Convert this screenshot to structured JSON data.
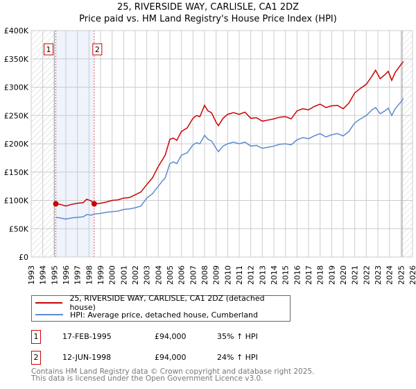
{
  "chart_data": {
    "type": "line",
    "title": "25, RIVERSIDE WAY, CARLISLE, CA1 2DZ",
    "subtitle": "Price paid vs. HM Land Registry's House Price Index (HPI)",
    "xlim": [
      1993,
      2026
    ],
    "ylim": [
      0,
      400000
    ],
    "yticks": [
      "£0",
      "£50K",
      "£100K",
      "£150K",
      "£200K",
      "£250K",
      "£300K",
      "£350K",
      "£400K"
    ],
    "xticks": [
      "1993",
      "1994",
      "1995",
      "1996",
      "1997",
      "1998",
      "1999",
      "2000",
      "2001",
      "2002",
      "2003",
      "2004",
      "2005",
      "2006",
      "2007",
      "2008",
      "2009",
      "2010",
      "2011",
      "2012",
      "2013",
      "2014",
      "2015",
      "2016",
      "2017",
      "2018",
      "2019",
      "2020",
      "2021",
      "2022",
      "2023",
      "2024",
      "2025",
      "2026"
    ],
    "grid": true,
    "series": [
      {
        "name": "25, RIVERSIDE WAY, CARLISLE, CA1 2DZ (detached house)",
        "color": "#cc0000",
        "x": [
          1995.13,
          1995.5,
          1996,
          1996.5,
          1997,
          1997.5,
          1997.8,
          1998.2,
          1998.45,
          1999,
          1999.5,
          2000,
          2000.5,
          2001,
          2001.5,
          2002,
          2002.5,
          2003,
          2003.5,
          2004,
          2004.3,
          2004.6,
          2005,
          2005.3,
          2005.6,
          2006,
          2006.5,
          2007,
          2007.3,
          2007.6,
          2008,
          2008.3,
          2008.6,
          2009,
          2009.2,
          2009.6,
          2010,
          2010.5,
          2011,
          2011.5,
          2012,
          2012.5,
          2013,
          2013.5,
          2014,
          2014.5,
          2015,
          2015.5,
          2016,
          2016.5,
          2017,
          2017.5,
          2018,
          2018.5,
          2019,
          2019.5,
          2020,
          2020.5,
          2021,
          2021.5,
          2022,
          2022.5,
          2022.8,
          2023.2,
          2023.6,
          2023.9,
          2024.2,
          2024.5,
          2025,
          2025.2
        ],
        "values": [
          94000,
          93000,
          90000,
          93000,
          95000,
          96000,
          102000,
          99000,
          94000,
          95000,
          97000,
          100000,
          101000,
          104000,
          105000,
          110000,
          115000,
          128000,
          140000,
          160000,
          170000,
          180000,
          208000,
          210000,
          206000,
          222000,
          228000,
          245000,
          250000,
          248000,
          268000,
          258000,
          255000,
          238000,
          232000,
          245000,
          252000,
          255000,
          252000,
          256000,
          245000,
          246000,
          240000,
          242000,
          244000,
          247000,
          248000,
          244000,
          258000,
          262000,
          260000,
          266000,
          270000,
          264000,
          267000,
          268000,
          262000,
          272000,
          290000,
          298000,
          305000,
          320000,
          330000,
          315000,
          322000,
          328000,
          312000,
          326000,
          340000,
          345000
        ]
      },
      {
        "name": "HPI: Average price, detached house, Cumberland",
        "color": "#5b8bd0",
        "x": [
          1995.13,
          1995.5,
          1996,
          1996.5,
          1997,
          1997.5,
          1997.8,
          1998.2,
          1998.45,
          1999,
          1999.5,
          2000,
          2000.5,
          2001,
          2001.5,
          2002,
          2002.5,
          2003,
          2003.5,
          2004,
          2004.3,
          2004.6,
          2005,
          2005.3,
          2005.6,
          2006,
          2006.5,
          2007,
          2007.3,
          2007.6,
          2008,
          2008.3,
          2008.6,
          2009,
          2009.2,
          2009.6,
          2010,
          2010.5,
          2011,
          2011.5,
          2012,
          2012.5,
          2013,
          2013.5,
          2014,
          2014.5,
          2015,
          2015.5,
          2016,
          2016.5,
          2017,
          2017.5,
          2018,
          2018.5,
          2019,
          2019.5,
          2020,
          2020.5,
          2021,
          2021.5,
          2022,
          2022.5,
          2022.8,
          2023.2,
          2023.6,
          2023.9,
          2024.2,
          2024.5,
          2025,
          2025.2
        ],
        "values": [
          70000,
          69000,
          67000,
          69000,
          70000,
          71000,
          75000,
          74000,
          76000,
          77000,
          79000,
          80000,
          81000,
          84000,
          85000,
          87000,
          90000,
          104000,
          112000,
          125000,
          133000,
          140000,
          165000,
          168000,
          165000,
          180000,
          184000,
          198000,
          202000,
          200000,
          215000,
          208000,
          205000,
          192000,
          186000,
          196000,
          200000,
          203000,
          200000,
          203000,
          196000,
          197000,
          192000,
          194000,
          196000,
          199000,
          200000,
          198000,
          207000,
          211000,
          209000,
          214000,
          218000,
          212000,
          216000,
          218000,
          214000,
          222000,
          237000,
          244000,
          250000,
          260000,
          264000,
          253000,
          258000,
          263000,
          250000,
          262000,
          274000,
          280000
        ]
      }
    ],
    "sales": [
      {
        "label": "1",
        "x": 1995.13,
        "value": 94000,
        "date": "17-FEB-1995",
        "price": "£94,000",
        "hpi": "35% ↑ HPI"
      },
      {
        "label": "2",
        "x": 1998.45,
        "value": 94000,
        "date": "12-JUN-1998",
        "price": "£94,000",
        "hpi": "24% ↑ HPI"
      }
    ],
    "hatched_before": 1995.0,
    "hatched_after": 2025.1,
    "legend_placement": "bottom"
  },
  "footer": {
    "line1": "Contains HM Land Registry data © Crown copyright and database right 2025.",
    "line2": "This data is licensed under the Open Government Licence v3.0."
  }
}
